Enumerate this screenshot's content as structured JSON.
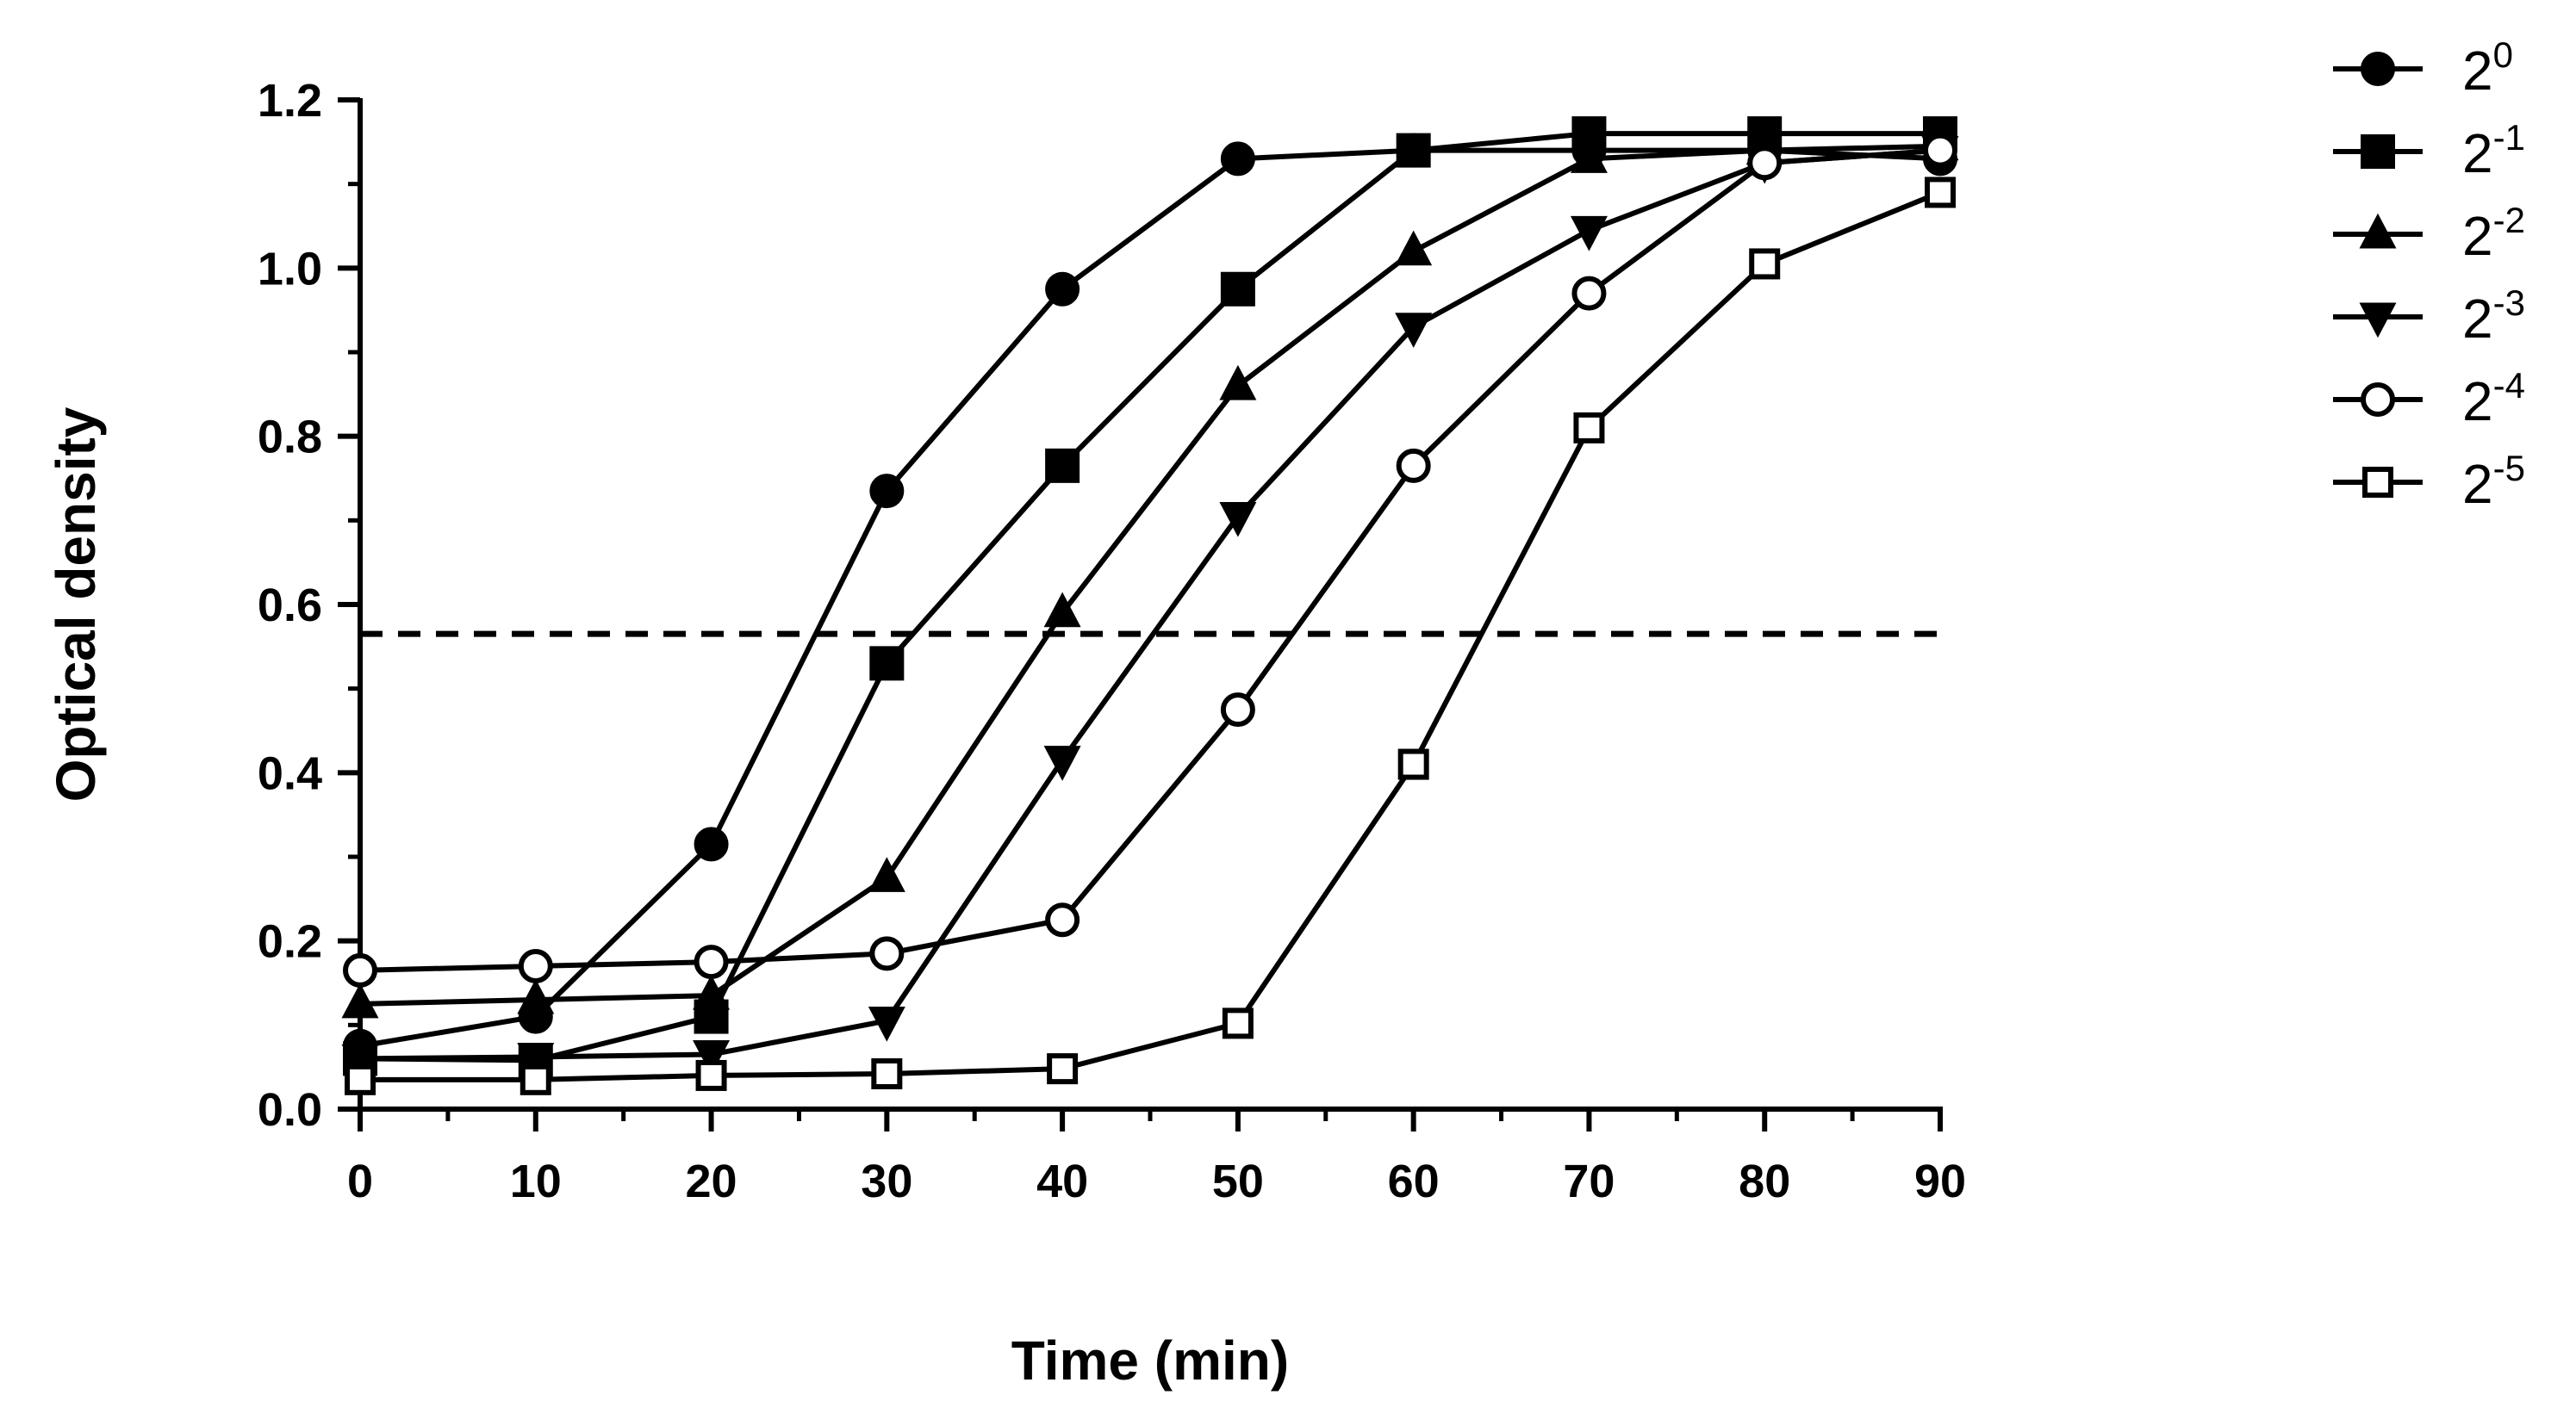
{
  "chart_data": {
    "type": "line",
    "title": "",
    "xlabel": "Time (min)",
    "ylabel": "Optical density",
    "xlim": [
      0,
      90
    ],
    "ylim": [
      0,
      1.2
    ],
    "x_ticks": [
      "0",
      "10",
      "20",
      "30",
      "40",
      "50",
      "60",
      "70",
      "80",
      "90"
    ],
    "y_ticks": [
      "0.0",
      "0.2",
      "0.4",
      "0.6",
      "0.8",
      "1.0",
      "1.2"
    ],
    "grid": false,
    "legend_position": "right",
    "reference_line": {
      "y": 0.565,
      "style": "dashed"
    },
    "x": [
      0,
      10,
      20,
      30,
      40,
      50,
      60,
      70,
      80,
      90
    ],
    "series": [
      {
        "name": "2^0",
        "label_base": "2",
        "label_exp": "0",
        "marker": "circle-filled",
        "values": [
          0.075,
          0.11,
          0.315,
          0.735,
          0.975,
          1.13,
          1.14,
          1.14,
          1.14,
          1.13
        ]
      },
      {
        "name": "2^-1",
        "label_base": "2",
        "label_exp": "-1",
        "marker": "square-filled",
        "values": [
          0.06,
          0.058,
          0.11,
          0.53,
          0.765,
          0.975,
          1.14,
          1.16,
          1.16,
          1.16
        ]
      },
      {
        "name": "2^-2",
        "label_base": "2",
        "label_exp": "-2",
        "marker": "triangle-up-filled",
        "values": [
          0.125,
          0.13,
          0.135,
          0.275,
          0.59,
          0.86,
          1.02,
          1.13,
          1.14,
          1.145
        ]
      },
      {
        "name": "2^-3",
        "label_base": "2",
        "label_exp": "-3",
        "marker": "triangle-down-filled",
        "values": [
          0.06,
          0.062,
          0.065,
          0.105,
          0.415,
          0.705,
          0.93,
          1.045,
          1.125,
          1.14
        ]
      },
      {
        "name": "2^-4",
        "label_base": "2",
        "label_exp": "-4",
        "marker": "circle-open",
        "values": [
          0.165,
          0.17,
          0.175,
          0.185,
          0.225,
          0.475,
          0.765,
          0.97,
          1.125,
          1.14
        ]
      },
      {
        "name": "2^-5",
        "label_base": "2",
        "label_exp": "-5",
        "marker": "square-open",
        "values": [
          0.035,
          0.035,
          0.04,
          0.042,
          0.048,
          0.102,
          0.41,
          0.81,
          1.005,
          1.09
        ]
      }
    ]
  }
}
